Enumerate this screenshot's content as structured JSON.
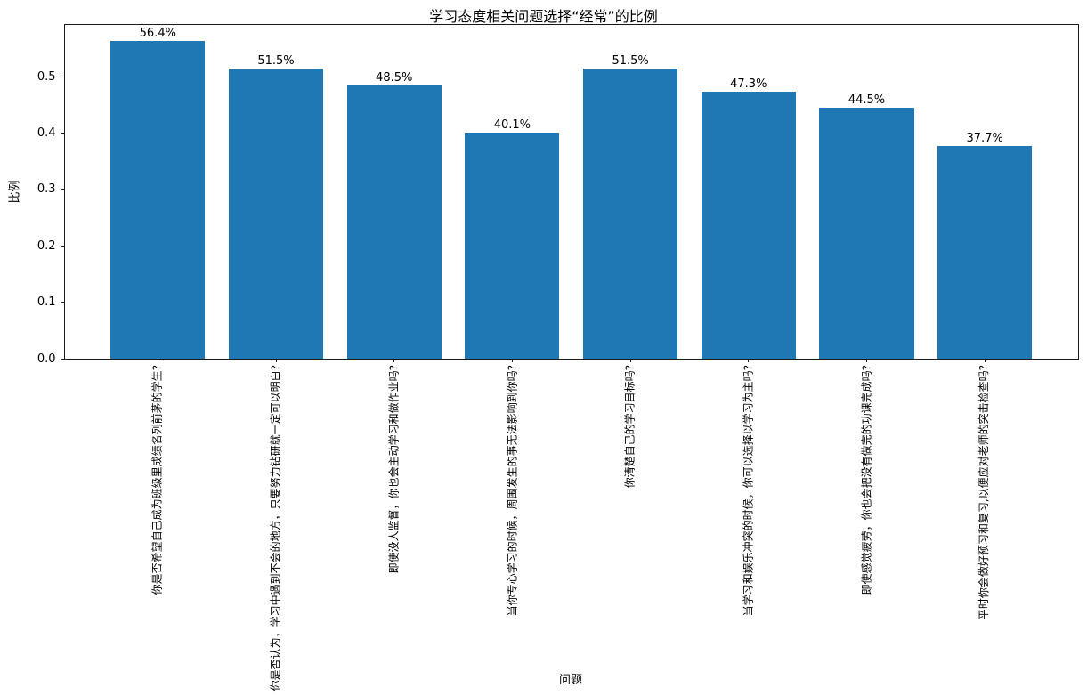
{
  "chart_data": {
    "type": "bar",
    "title": "学习态度相关问题选择“经常”的比例",
    "xlabel": "问题",
    "ylabel": "比例",
    "categories": [
      "你是否希望自己成为班级里成绩名列前茅的学生?",
      "你是否认为，学习中遇到不会的地方，只要努力钻研就一定可以明白?",
      "即使没人监督，你也会主动学习和做作业吗?",
      "当你专心学习的时候，周围发生的事无法影响到你吗?",
      "你清楚自己的学习目标吗?",
      "当学习和娱乐冲突的时候，你可以选择以学习为主吗?",
      "即使感觉疲劳，你也会把没有做完的功课完成吗?",
      "平时你会做好预习和复习,以便应对老师的突击检查吗?"
    ],
    "values": [
      0.564,
      0.515,
      0.485,
      0.401,
      0.515,
      0.473,
      0.445,
      0.377
    ],
    "bar_labels": [
      "56.4%",
      "51.5%",
      "48.5%",
      "40.1%",
      "51.5%",
      "47.3%",
      "44.5%",
      "37.7%"
    ],
    "yticks": [
      "0.0",
      "0.1",
      "0.2",
      "0.3",
      "0.4",
      "0.5"
    ],
    "ylim": [
      0,
      0.592
    ],
    "bar_color": "#1f77b4",
    "axis_color": "#1a1a1a",
    "grid": false,
    "legend": null,
    "x_tick_rotation": 90
  }
}
